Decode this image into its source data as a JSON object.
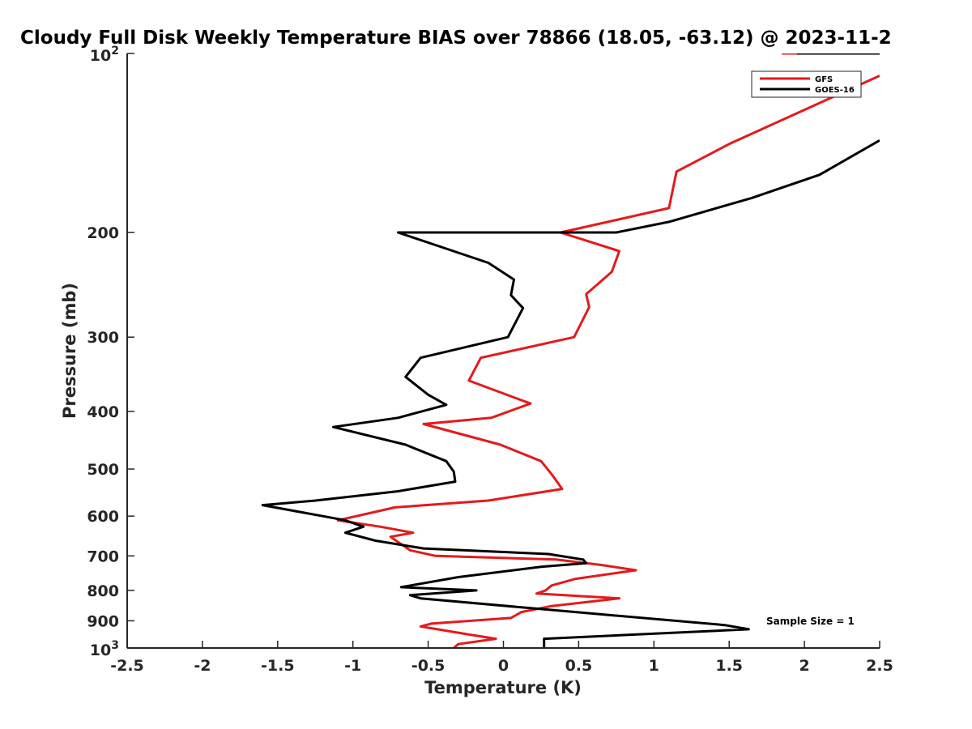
{
  "chart_data": {
    "type": "line",
    "title": "Cloudy Full Disk Weekly Temperature BIAS over 78866 (18.05, -63.12) @ 2023-11-2",
    "xlabel": "Temperature (K)",
    "ylabel": "Pressure (mb)",
    "xlim": [
      -2.5,
      2.5
    ],
    "ylim": [
      1000,
      100
    ],
    "y_scale": "log",
    "grid": false,
    "x_ticks": [
      -2.5,
      -2,
      -1.5,
      -1,
      -0.5,
      0,
      0.5,
      1,
      1.5,
      2,
      2.5
    ],
    "x_tick_labels": [
      "-2.5",
      "-2",
      "-1.5",
      "-1",
      "-0.5",
      "0",
      "0.5",
      "1",
      "1.5",
      "2",
      "2.5"
    ],
    "y_ticks": [
      {
        "value": 100,
        "base": "10",
        "exp": "2"
      },
      {
        "value": 200,
        "label": "200"
      },
      {
        "value": 300,
        "label": "300"
      },
      {
        "value": 400,
        "label": "400"
      },
      {
        "value": 500,
        "label": "500"
      },
      {
        "value": 600,
        "label": "600"
      },
      {
        "value": 700,
        "label": "700"
      },
      {
        "value": 800,
        "label": "800"
      },
      {
        "value": 900,
        "label": "900"
      },
      {
        "value": 1000,
        "base": "10",
        "exp": "3"
      }
    ],
    "legend_position": "top-right",
    "series": [
      {
        "name": "GFS",
        "color": "#e41a1c",
        "points": [
          [
            2.5,
            109
          ],
          [
            1.5,
            142
          ],
          [
            1.15,
            158
          ],
          [
            1.1,
            182
          ],
          [
            0.38,
            200
          ],
          [
            0.77,
            215
          ],
          [
            0.72,
            233
          ],
          [
            0.55,
            254
          ],
          [
            0.57,
            267
          ],
          [
            0.47,
            300
          ],
          [
            -0.15,
            325
          ],
          [
            -0.23,
            355
          ],
          [
            0.18,
            388
          ],
          [
            -0.08,
            410
          ],
          [
            -0.53,
            420
          ],
          [
            -0.02,
            455
          ],
          [
            0.25,
            485
          ],
          [
            0.32,
            510
          ],
          [
            0.39,
            540
          ],
          [
            -0.1,
            565
          ],
          [
            -0.72,
            580
          ],
          [
            -1.1,
            610
          ],
          [
            -0.82,
            625
          ],
          [
            -0.6,
            640
          ],
          [
            -0.75,
            650
          ],
          [
            -0.62,
            685
          ],
          [
            -0.45,
            700
          ],
          [
            0.35,
            710
          ],
          [
            0.65,
            725
          ],
          [
            0.88,
            740
          ],
          [
            0.48,
            765
          ],
          [
            0.32,
            785
          ],
          [
            0.28,
            800
          ],
          [
            0.22,
            810
          ],
          [
            0.77,
            825
          ],
          [
            0.32,
            850
          ],
          [
            0.12,
            870
          ],
          [
            0.05,
            890
          ],
          [
            -0.48,
            910
          ],
          [
            -0.55,
            920
          ],
          [
            -0.22,
            950
          ],
          [
            -0.05,
            965
          ],
          [
            -0.3,
            985
          ],
          [
            -0.33,
            1000
          ]
        ]
      },
      {
        "name": "GOES-16",
        "color": "#000000",
        "points": [
          [
            2.5,
            140
          ],
          [
            2.1,
            160
          ],
          [
            1.65,
            175
          ],
          [
            1.1,
            192
          ],
          [
            0.75,
            200
          ],
          [
            -0.7,
            200
          ],
          [
            -0.1,
            225
          ],
          [
            0.07,
            240
          ],
          [
            0.05,
            255
          ],
          [
            0.13,
            268
          ],
          [
            0.03,
            300
          ],
          [
            -0.55,
            325
          ],
          [
            -0.65,
            350
          ],
          [
            -0.5,
            375
          ],
          [
            -0.38,
            390
          ],
          [
            -0.7,
            410
          ],
          [
            -1.13,
            425
          ],
          [
            -0.65,
            455
          ],
          [
            -0.38,
            485
          ],
          [
            -0.33,
            505
          ],
          [
            -0.32,
            525
          ],
          [
            -0.7,
            545
          ],
          [
            -1.25,
            565
          ],
          [
            -1.6,
            575
          ],
          [
            -1.2,
            600
          ],
          [
            -1.05,
            610
          ],
          [
            -0.93,
            625
          ],
          [
            -1.05,
            640
          ],
          [
            -0.85,
            660
          ],
          [
            -0.53,
            680
          ],
          [
            0.3,
            695
          ],
          [
            0.53,
            710
          ],
          [
            0.55,
            720
          ],
          [
            0.25,
            730
          ],
          [
            -0.3,
            760
          ],
          [
            -0.68,
            790
          ],
          [
            -0.18,
            800
          ],
          [
            -0.62,
            815
          ],
          [
            -0.55,
            825
          ],
          [
            0.25,
            860
          ],
          [
            1.47,
            915
          ],
          [
            1.63,
            930
          ],
          [
            0.27,
            965
          ],
          [
            0.27,
            1000
          ]
        ]
      },
      {
        "name": "",
        "color": "#e41a1c",
        "points": [
          [
            2.5,
            100
          ],
          [
            1.85,
            100
          ]
        ]
      },
      {
        "name": "",
        "color": "#000000",
        "points": [
          [
            2.5,
            100
          ],
          [
            1.95,
            100
          ]
        ]
      }
    ],
    "annotation": "Sample Size = 1"
  }
}
